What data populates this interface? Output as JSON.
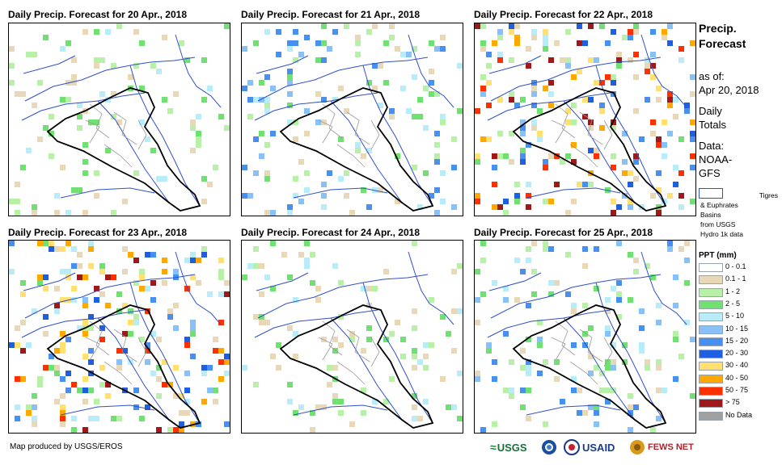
{
  "panels": [
    {
      "title": "Daily Precip. Forecast for 20 Apr., 2018",
      "day": "20 Apr.",
      "intensity": 1
    },
    {
      "title": "Daily Precip. Forecast for 21 Apr., 2018",
      "day": "21 Apr.",
      "intensity": 2
    },
    {
      "title": "Daily Precip. Forecast for 22 Apr., 2018",
      "day": "22 Apr.",
      "intensity": 4
    },
    {
      "title": "Daily Precip. Forecast for 23 Apr., 2018",
      "day": "23 Apr.",
      "intensity": 4
    },
    {
      "title": "Daily Precip. Forecast for 24 Apr., 2018",
      "day": "24 Apr.",
      "intensity": 1
    },
    {
      "title": "Daily Precip. Forecast for 25 Apr., 2018",
      "day": "25 Apr.",
      "intensity": 2
    }
  ],
  "sidebar": {
    "title_line1": "Precip.",
    "title_line2": "Forecast",
    "asof_label": "as of:",
    "asof_date": "Apr 20, 2018",
    "daily_line1": "Daily",
    "daily_line2": "Totals",
    "data_label": "Data:",
    "data_line1": "NOAA-",
    "data_line2": "GFS",
    "basin_line1": "Tigres",
    "basin_line2": "& Euphrates",
    "basin_line3": "Basins",
    "basin_line4": "from USGS",
    "basin_line5": "Hydro 1k data"
  },
  "legend": {
    "title": "PPT (mm)",
    "items": [
      {
        "label": "0 - 0.1",
        "color": "#ffffff"
      },
      {
        "label": "0.1 - 1",
        "color": "#e8d8b8"
      },
      {
        "label": "1 - 2",
        "color": "#b8f0a8"
      },
      {
        "label": "2 - 5",
        "color": "#70e070"
      },
      {
        "label": "5 - 10",
        "color": "#b8ecf8"
      },
      {
        "label": "10 - 15",
        "color": "#88c0f8"
      },
      {
        "label": "15 - 20",
        "color": "#4890f0"
      },
      {
        "label": "20 - 30",
        "color": "#1e5ee0"
      },
      {
        "label": "30 - 40",
        "color": "#ffe070"
      },
      {
        "label": "40 - 50",
        "color": "#ffa800"
      },
      {
        "label": "50 - 75",
        "color": "#ff3000"
      },
      {
        "label": "> 75",
        "color": "#a01818"
      },
      {
        "label": "No Data",
        "color": "#a0a0a0"
      }
    ]
  },
  "footer": {
    "credit": "Map produced by USGS/EROS"
  },
  "logos": {
    "usgs": "USGS",
    "usaid": "USAID",
    "fews": "FEWS NET"
  }
}
